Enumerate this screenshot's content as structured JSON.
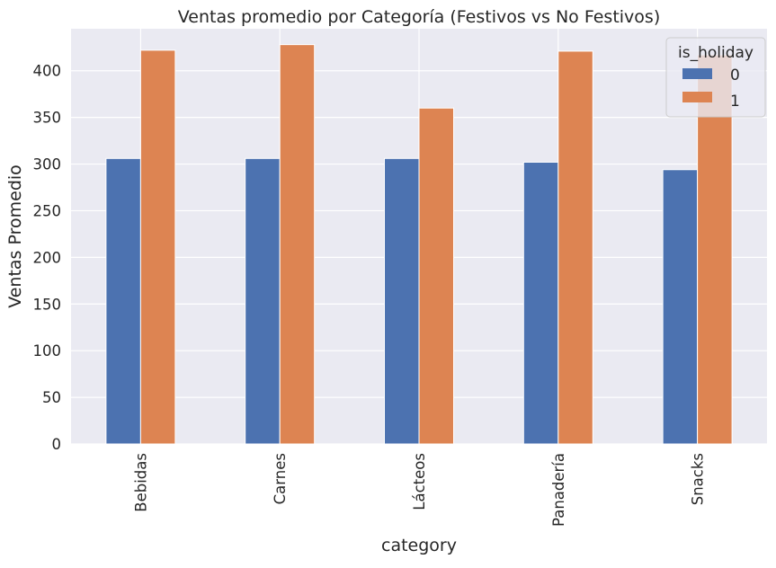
{
  "chart_data": {
    "type": "bar",
    "title": "Ventas promedio por Categoría (Festivos vs No Festivos)",
    "xlabel": "category",
    "ylabel": "Ventas Promedio",
    "categories": [
      "Bebidas",
      "Carnes",
      "Lácteos",
      "Panadería",
      "Snacks"
    ],
    "series": [
      {
        "name": "0",
        "values": [
          306,
          306,
          306,
          302,
          294
        ]
      },
      {
        "name": "1",
        "values": [
          422,
          428,
          360,
          421,
          417
        ]
      }
    ],
    "ylim": [
      0,
      445
    ],
    "yticks": [
      0,
      50,
      100,
      150,
      200,
      250,
      300,
      350,
      400
    ],
    "grid": true,
    "legend": {
      "title": "is_holiday",
      "position": "top-right"
    },
    "colors": {
      "series": [
        "#4c72b0",
        "#dd8452"
      ],
      "plot_background": "#eaeaf2",
      "grid": "#ffffff",
      "text": "#262626"
    }
  }
}
